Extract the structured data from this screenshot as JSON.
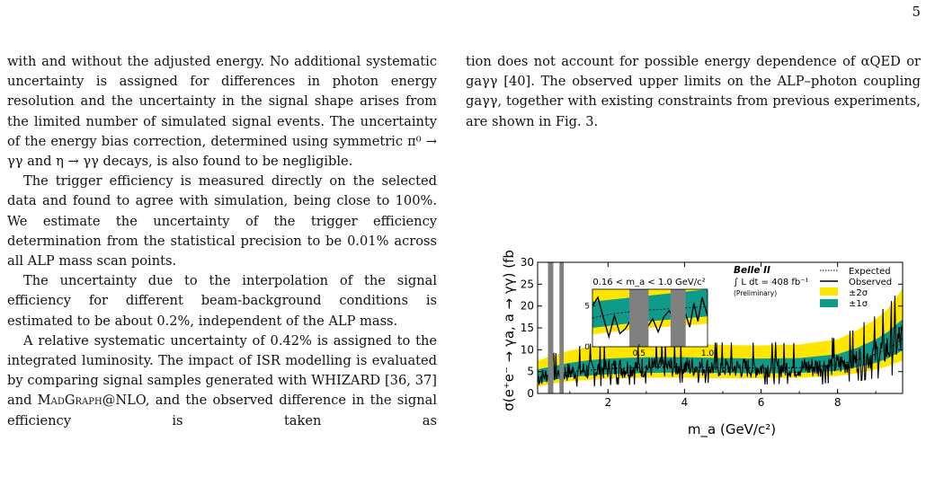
{
  "page_number": "5",
  "left_column": {
    "p1": "with and without the adjusted energy. No additional systematic uncertainty is assigned for differences in photon energy resolution and the uncertainty in the signal shape arises from the limited number of simulated signal events. The uncertainty of the energy bias correction, determined using symmetric π⁰ → γγ and η → γγ decays, is also found to be negligible.",
    "p2": "The trigger efficiency is measured directly on the selected data and found to agree with simulation, being close to 100%. We estimate the uncertainty of the trigger efficiency determination from the statistical precision to be 0.01% across all ALP mass scan points.",
    "p3": "The uncertainty due to the interpolation of the signal efficiency for different beam-background conditions is estimated to be about 0.2%, independent of the ALP mass.",
    "p4_a": "A relative systematic uncertainty of 0.42% is assigned to the integrated luminosity. The impact of ISR modelling is evaluated by comparing signal samples generated with WHIZARD [36, 37] and ",
    "p4_sc": "MadGraph",
    "p4_b": "@NLO, and the observed difference in the signal efficiency is taken as"
  },
  "right_column": {
    "p1": "tion does not account for possible energy dependence of αQED or gaγγ [40]. The observed upper limits on the ALP–photon coupling gaγγ, together with existing constraints from previous experiments, are shown in Fig. 3."
  },
  "chart_data": {
    "type": "line",
    "title": "",
    "xlabel": "m_a (GeV/c²)",
    "ylabel": "σ(e⁺e⁻ → γa, a → γγ) (fb)",
    "xlim": [
      0.16,
      9.7
    ],
    "ylim": [
      0,
      30
    ],
    "xticks": [
      "2",
      "4",
      "6",
      "8"
    ],
    "yticks": [
      "0",
      "5",
      "10",
      "15",
      "20",
      "25",
      "30"
    ],
    "experiment": "Belle II",
    "luminosity": "∫ L dt = 408 fb⁻¹",
    "status": "(Preliminary)",
    "legend_position": "top-right",
    "legend": [
      "Expected",
      "Observed",
      "±2σ",
      "±1σ"
    ],
    "colors": {
      "band2": "#ffe600",
      "band1": "#0f9b8a",
      "vetoed": "#808080",
      "line": "#000000"
    },
    "vetoed_regions": [
      [
        0.43,
        0.57
      ],
      [
        0.73,
        0.84
      ]
    ],
    "expected": {
      "x": [
        0.16,
        0.3,
        0.5,
        1.0,
        1.5,
        2.0,
        3.0,
        4.0,
        5.0,
        6.0,
        7.0,
        7.5,
        8.0,
        8.5,
        9.0,
        9.3,
        9.7
      ],
      "y": [
        3.5,
        4.0,
        4.4,
        4.9,
        5.3,
        5.7,
        6.0,
        6.1,
        5.9,
        5.8,
        5.9,
        6.1,
        6.6,
        7.6,
        9.0,
        10.2,
        12.5
      ]
    },
    "band_1sigma": {
      "x": [
        0.16,
        0.5,
        1.0,
        1.5,
        2.0,
        3.0,
        4.0,
        5.0,
        6.0,
        7.0,
        8.0,
        8.5,
        9.0,
        9.3,
        9.7
      ],
      "low": [
        2.3,
        3.0,
        3.7,
        4.1,
        4.4,
        4.7,
        4.8,
        4.7,
        4.6,
        4.7,
        5.2,
        6.0,
        7.0,
        8.0,
        9.8
      ],
      "high": [
        5.5,
        6.1,
        7.0,
        7.6,
        8.0,
        8.3,
        8.3,
        8.1,
        8.0,
        8.1,
        9.0,
        10.4,
        12.4,
        14.0,
        17.0
      ]
    },
    "band_2sigma": {
      "x": [
        0.16,
        0.5,
        1.0,
        1.5,
        2.0,
        3.0,
        4.0,
        5.0,
        6.0,
        7.0,
        8.0,
        8.5,
        9.0,
        9.3,
        9.7
      ],
      "low": [
        1.5,
        2.2,
        2.8,
        3.1,
        3.4,
        3.6,
        3.6,
        3.5,
        3.5,
        3.6,
        4.0,
        4.6,
        5.5,
        6.2,
        7.5
      ],
      "high": [
        7.5,
        8.5,
        9.8,
        10.6,
        11.1,
        11.4,
        11.4,
        11.1,
        11.0,
        11.2,
        12.4,
        14.4,
        17.0,
        19.2,
        24.0
      ]
    },
    "inset": {
      "label": "0.16 < m_a < 1.0 GeV/c²",
      "xlim": [
        0.16,
        1.0
      ],
      "ylim": [
        0,
        7
      ],
      "xticks": [
        "0.5",
        "1.0"
      ],
      "yticks": [
        "0",
        "5"
      ],
      "observed": {
        "x": [
          0.16,
          0.2,
          0.24,
          0.28,
          0.32,
          0.36,
          0.4,
          0.43,
          0.57,
          0.6,
          0.64,
          0.68,
          0.72,
          0.73,
          0.84,
          0.87,
          0.9,
          0.93,
          0.96,
          1.0
        ],
        "y": [
          5.0,
          6.0,
          3.5,
          1.2,
          3.8,
          1.6,
          2.2,
          3.0,
          2.6,
          3.4,
          1.8,
          3.6,
          4.4,
          4.1,
          4.0,
          2.4,
          5.3,
          3.1,
          6.0,
          3.8
        ]
      }
    }
  }
}
